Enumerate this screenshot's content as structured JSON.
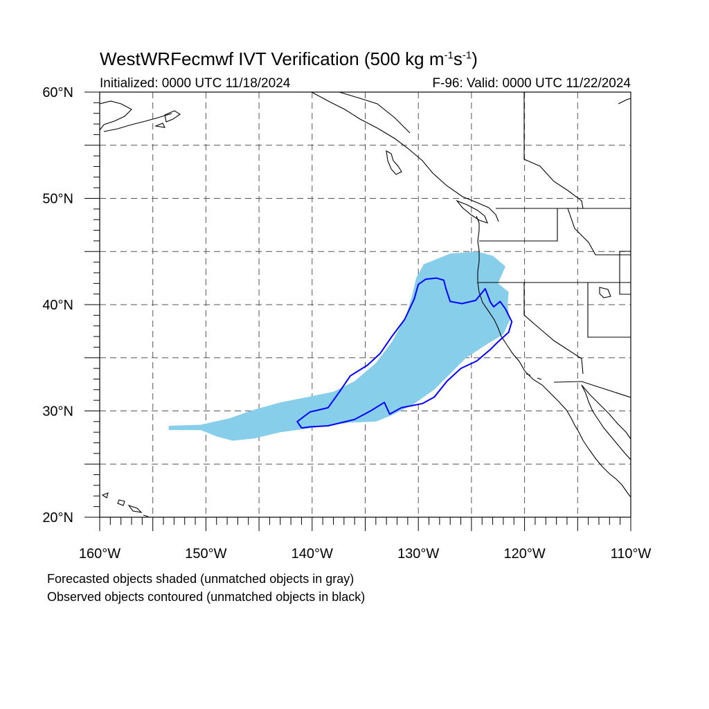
{
  "title": {
    "prefix": "WestWRFecmwf IVT Verification (500 kg m",
    "exp1": "-1",
    "mid": "s",
    "exp2": "-1",
    "suffix": ")"
  },
  "initialized": "Initialized: 0000 UTC 11/18/2024",
  "valid": "F-96: Valid: 0000 UTC 11/22/2024",
  "map": {
    "lon_range": [
      -160,
      -110
    ],
    "lat_range": [
      20,
      60
    ],
    "lon_labels": [
      "160°W",
      "150°W",
      "140°W",
      "130°W",
      "120°W",
      "110°W"
    ],
    "lat_labels": [
      "20°N",
      "30°N",
      "40°N",
      "50°N",
      "60°N"
    ],
    "grid_lons": [
      -155,
      -150,
      -145,
      -140,
      -135,
      -130,
      -125,
      -120,
      -115
    ],
    "grid_lats": [
      25,
      30,
      35,
      40,
      45,
      50,
      55
    ],
    "grid_style": "dashed",
    "colors": {
      "forecast_fill": "#87ceeb",
      "observed_contour": "#0000ff",
      "coastline": "#000000",
      "grid": "#555555"
    }
  },
  "forecast_object": {
    "label": "forecast IVT object (matched)",
    "polygon": [
      [
        -153.5,
        28.2
      ],
      [
        -150.5,
        28.2
      ],
      [
        -149.0,
        27.6
      ],
      [
        -147.5,
        27.2
      ],
      [
        -145.5,
        27.4
      ],
      [
        -143.0,
        28.0
      ],
      [
        -140.0,
        28.4
      ],
      [
        -136.5,
        28.9
      ],
      [
        -134.0,
        29.0
      ],
      [
        -132.5,
        29.6
      ],
      [
        -130.5,
        30.6
      ],
      [
        -128.5,
        32.0
      ],
      [
        -127.0,
        33.5
      ],
      [
        -125.5,
        35.0
      ],
      [
        -123.5,
        36.3
      ],
      [
        -122.0,
        37.2
      ],
      [
        -121.4,
        38.5
      ],
      [
        -121.6,
        40.0
      ],
      [
        -121.5,
        41.2
      ],
      [
        -122.5,
        42.0
      ],
      [
        -121.8,
        43.6
      ],
      [
        -123.0,
        44.6
      ],
      [
        -124.5,
        45.0
      ],
      [
        -127.0,
        44.8
      ],
      [
        -129.5,
        43.8
      ],
      [
        -130.2,
        42.5
      ],
      [
        -130.6,
        40.8
      ],
      [
        -131.2,
        38.8
      ],
      [
        -132.5,
        36.5
      ],
      [
        -134.0,
        34.5
      ],
      [
        -136.0,
        32.8
      ],
      [
        -138.0,
        31.8
      ],
      [
        -141.0,
        31.2
      ],
      [
        -143.0,
        30.8
      ],
      [
        -145.5,
        30.1
      ],
      [
        -147.8,
        29.3
      ],
      [
        -150.5,
        28.7
      ],
      [
        -153.5,
        28.6
      ]
    ]
  },
  "observed_object": {
    "label": "observed IVT object (matched)",
    "polygon": [
      [
        -141.0,
        28.4
      ],
      [
        -140.2,
        28.5
      ],
      [
        -138.5,
        28.6
      ],
      [
        -136.0,
        29.2
      ],
      [
        -134.5,
        30.0
      ],
      [
        -133.2,
        30.8
      ],
      [
        -132.7,
        29.7
      ],
      [
        -131.6,
        30.3
      ],
      [
        -129.6,
        30.7
      ],
      [
        -128.5,
        31.3
      ],
      [
        -127.3,
        32.8
      ],
      [
        -126.0,
        34.0
      ],
      [
        -124.5,
        34.7
      ],
      [
        -123.2,
        35.8
      ],
      [
        -122.5,
        36.5
      ],
      [
        -121.5,
        37.4
      ],
      [
        -121.2,
        38.4
      ],
      [
        -121.8,
        39.6
      ],
      [
        -122.3,
        40.3
      ],
      [
        -122.9,
        39.8
      ],
      [
        -123.2,
        40.2
      ],
      [
        -123.7,
        41.5
      ],
      [
        -124.6,
        40.4
      ],
      [
        -125.9,
        40.1
      ],
      [
        -127.0,
        40.3
      ],
      [
        -127.4,
        41.5
      ],
      [
        -127.6,
        42.3
      ],
      [
        -128.3,
        42.5
      ],
      [
        -129.3,
        42.4
      ],
      [
        -130.0,
        41.9
      ],
      [
        -130.4,
        40.5
      ],
      [
        -131.3,
        38.6
      ],
      [
        -132.5,
        37.0
      ],
      [
        -133.6,
        35.4
      ],
      [
        -134.8,
        34.3
      ],
      [
        -136.4,
        33.3
      ],
      [
        -137.5,
        31.7
      ],
      [
        -138.5,
        30.3
      ],
      [
        -140.2,
        29.9
      ],
      [
        -141.4,
        29.0
      ],
      [
        -141.0,
        28.4
      ]
    ]
  },
  "notes": {
    "line1": "Forecasted objects shaded (unmatched objects in gray)",
    "line2": "Observed objects contoured (unmatched objects in black)"
  }
}
